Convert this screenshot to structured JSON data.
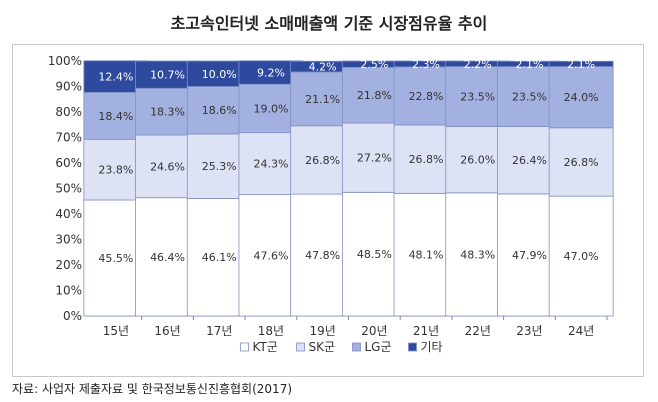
{
  "title": "초고속인터넷 소매매출액 기준 시장점유율 추이",
  "source": "자료: 사업자 제출자료 및 한국정보통신진흥협회(2017)",
  "chart_data": {
    "type": "bar",
    "stacked": true,
    "categories": [
      "15년",
      "16년",
      "17년",
      "18년",
      "19년",
      "20년",
      "21년",
      "22년",
      "23년",
      "24년"
    ],
    "ylim": [
      0,
      100
    ],
    "yticks": [
      "0%",
      "10%",
      "20%",
      "30%",
      "40%",
      "50%",
      "60%",
      "70%",
      "80%",
      "90%",
      "100%"
    ],
    "legend_position": "bottom",
    "series": [
      {
        "name": "KT군",
        "color": "#ffffff",
        "label_color": "#333333",
        "values": [
          45.5,
          46.4,
          46.1,
          47.6,
          47.8,
          48.5,
          48.1,
          48.3,
          47.9,
          47.0
        ],
        "labels": [
          "45.5%",
          "46.4%",
          "46.1%",
          "47.6%",
          "47.8%",
          "48.5%",
          "48.1%",
          "48.3%",
          "47.9%",
          "47.0%"
        ]
      },
      {
        "name": "SK군",
        "color": "#dde3f4",
        "label_color": "#333333",
        "values": [
          23.8,
          24.6,
          25.3,
          24.3,
          26.8,
          27.2,
          26.8,
          26.0,
          26.4,
          26.8
        ],
        "labels": [
          "23.8%",
          "24.6%",
          "25.3%",
          "24.3%",
          "26.8%",
          "27.2%",
          "26.8%",
          "26.0%",
          "26.4%",
          "26.8%"
        ]
      },
      {
        "name": "LG군",
        "color": "#a3b1e1",
        "label_color": "#333333",
        "values": [
          18.4,
          18.3,
          18.6,
          19.0,
          21.1,
          21.8,
          22.8,
          23.5,
          23.5,
          24.0
        ],
        "labels": [
          "18.4%",
          "18.3%",
          "18.6%",
          "19.0%",
          "21.1%",
          "21.8%",
          "22.8%",
          "23.5%",
          "23.5%",
          "24.0%"
        ]
      },
      {
        "name": "기타",
        "color": "#2e4a9e",
        "label_color": "#ffffff",
        "values": [
          12.4,
          10.7,
          10.0,
          9.2,
          4.2,
          2.5,
          2.3,
          2.2,
          2.1,
          2.1
        ],
        "labels": [
          "12.4%",
          "10.7%",
          "10.0%",
          "9.2%",
          "4.2%",
          "2.5%",
          "2.3%",
          "2.2%",
          "2.1%",
          "2.1%"
        ]
      }
    ]
  }
}
